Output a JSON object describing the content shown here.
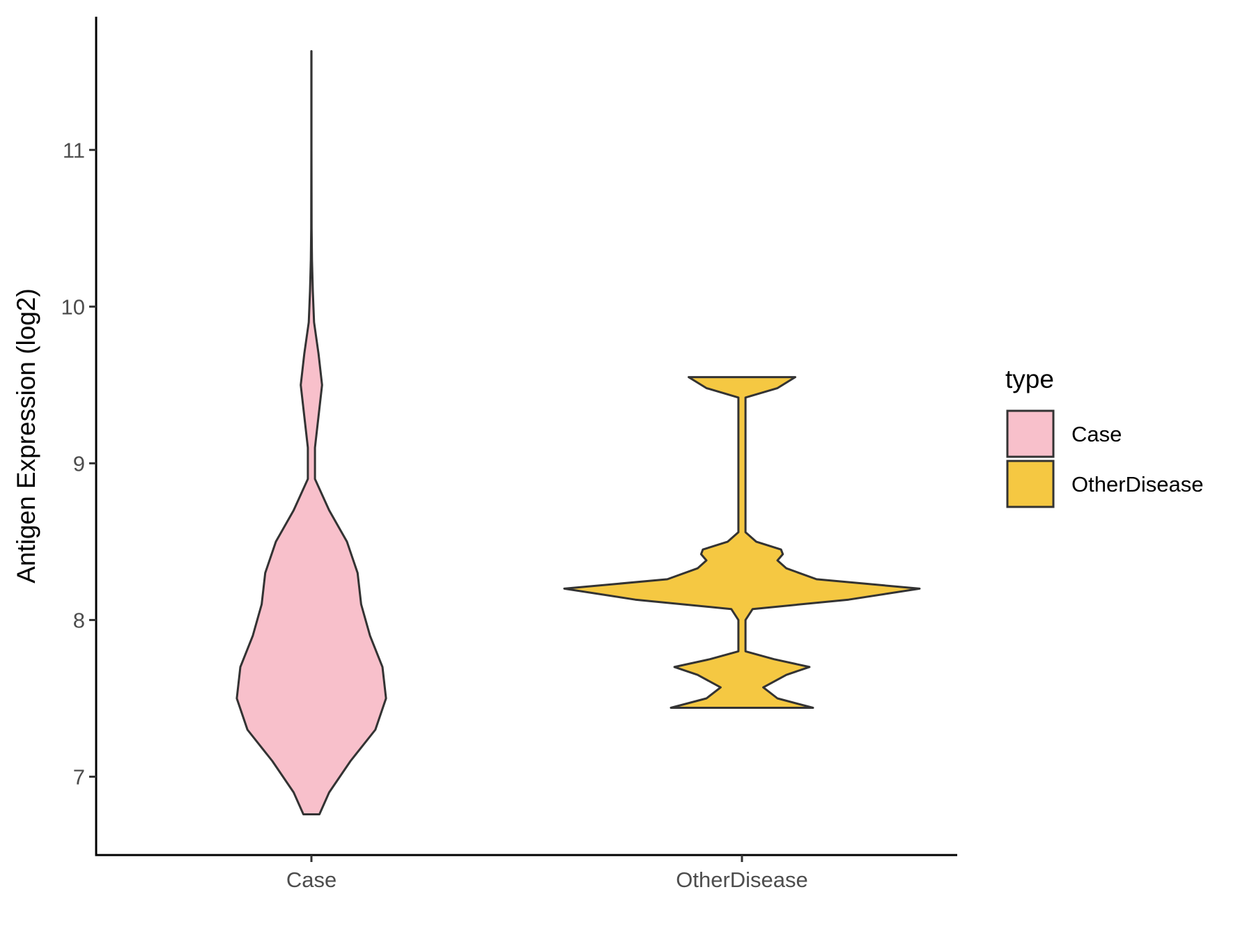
{
  "chart_data": {
    "type": "violin",
    "ylabel": "Antigen Expression (log2)",
    "xlabel": "",
    "ylim": [
      6.5,
      11.85
    ],
    "yticks": [
      7,
      8,
      9,
      10,
      11
    ],
    "categories": [
      "Case",
      "OtherDisease"
    ],
    "legend": {
      "title": "type",
      "position": "right",
      "entries": [
        "Case",
        "OtherDisease"
      ]
    },
    "series": [
      {
        "name": "Case",
        "color": "#f8c0cb",
        "range": [
          6.76,
          11.63
        ],
        "density_profile": [
          [
            6.76,
            0.045
          ],
          [
            6.9,
            0.1
          ],
          [
            7.1,
            0.22
          ],
          [
            7.3,
            0.36
          ],
          [
            7.5,
            0.42
          ],
          [
            7.7,
            0.4
          ],
          [
            7.9,
            0.33
          ],
          [
            8.1,
            0.28
          ],
          [
            8.3,
            0.26
          ],
          [
            8.5,
            0.2
          ],
          [
            8.7,
            0.1
          ],
          [
            8.9,
            0.02
          ],
          [
            9.1,
            0.02
          ],
          [
            9.3,
            0.04
          ],
          [
            9.5,
            0.06
          ],
          [
            9.7,
            0.04
          ],
          [
            9.9,
            0.015
          ],
          [
            10.1,
            0.008
          ],
          [
            10.3,
            0.003
          ],
          [
            10.5,
            0.001
          ],
          [
            11.0,
            0.0005
          ],
          [
            11.63,
            0.0005
          ]
        ]
      },
      {
        "name": "OtherDisease",
        "color": "#f5c842",
        "range": [
          7.44,
          9.55
        ],
        "density_profile": [
          [
            7.44,
            0.4
          ],
          [
            7.5,
            0.2
          ],
          [
            7.57,
            0.12
          ],
          [
            7.65,
            0.25
          ],
          [
            7.7,
            0.38
          ],
          [
            7.75,
            0.18
          ],
          [
            7.8,
            0.02
          ],
          [
            8.0,
            0.02
          ],
          [
            8.07,
            0.06
          ],
          [
            8.13,
            0.6
          ],
          [
            8.2,
            1.0
          ],
          [
            8.26,
            0.42
          ],
          [
            8.33,
            0.25
          ],
          [
            8.38,
            0.2
          ],
          [
            8.42,
            0.23
          ],
          [
            8.45,
            0.22
          ],
          [
            8.5,
            0.08
          ],
          [
            8.56,
            0.02
          ],
          [
            9.0,
            0.02
          ],
          [
            9.42,
            0.02
          ],
          [
            9.48,
            0.2
          ],
          [
            9.55,
            0.3
          ]
        ]
      }
    ]
  }
}
